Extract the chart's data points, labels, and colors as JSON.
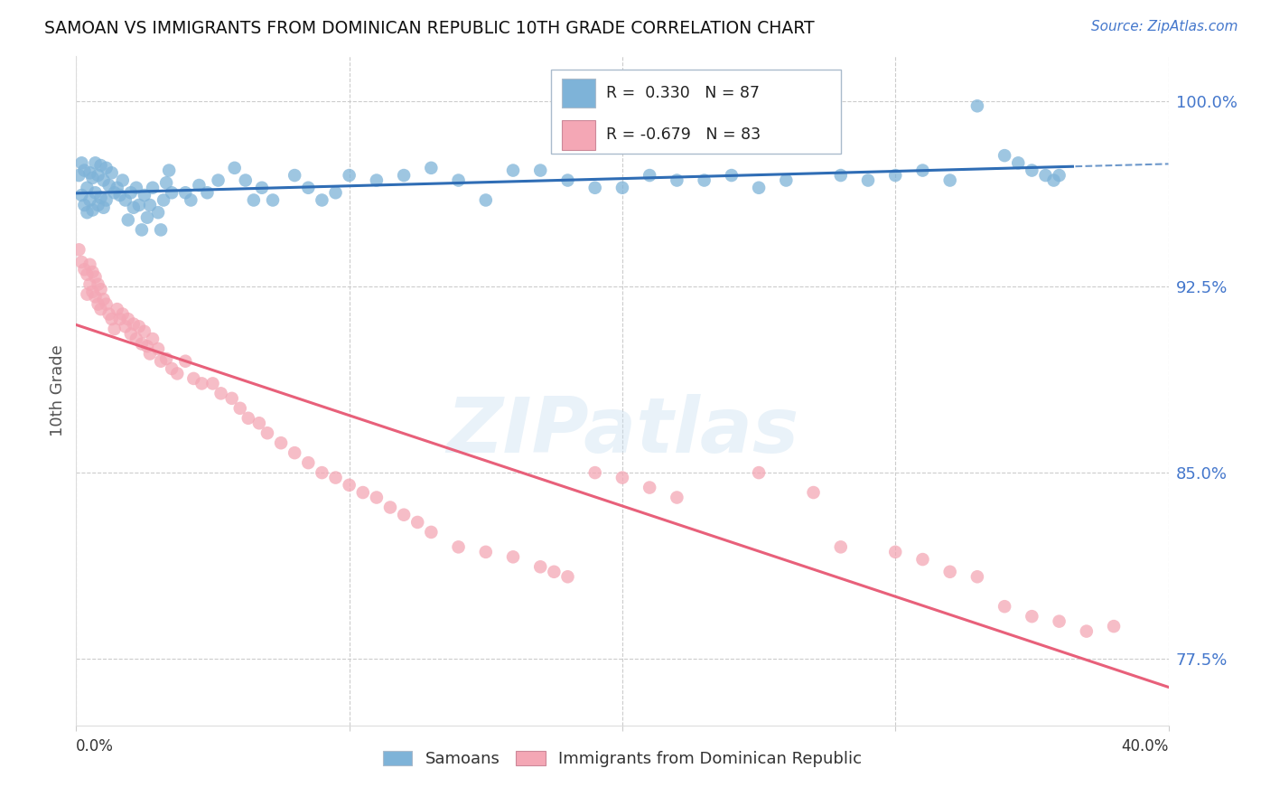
{
  "title": "SAMOAN VS IMMIGRANTS FROM DOMINICAN REPUBLIC 10TH GRADE CORRELATION CHART",
  "source": "Source: ZipAtlas.com",
  "ylabel": "10th Grade",
  "yticks": [
    0.775,
    0.85,
    0.925,
    1.0
  ],
  "ytick_labels": [
    "77.5%",
    "85.0%",
    "92.5%",
    "100.0%"
  ],
  "xticks": [
    0.0,
    0.1,
    0.2,
    0.3,
    0.4
  ],
  "xmin": 0.0,
  "xmax": 0.4,
  "ymin": 0.748,
  "ymax": 1.018,
  "blue_color": "#7EB3D8",
  "pink_color": "#F4A7B5",
  "blue_line_color": "#2F6DB5",
  "pink_line_color": "#E8607A",
  "legend_blue_text": "R =  0.330   N = 87",
  "legend_pink_text": "R = -0.679   N = 83",
  "bottom_legend_blue": "Samoans",
  "bottom_legend_pink": "Immigrants from Dominican Republic",
  "watermark": "ZIPatlas",
  "blue_x": [
    0.001,
    0.002,
    0.002,
    0.003,
    0.003,
    0.004,
    0.004,
    0.005,
    0.005,
    0.006,
    0.006,
    0.007,
    0.007,
    0.008,
    0.008,
    0.009,
    0.009,
    0.01,
    0.01,
    0.011,
    0.011,
    0.012,
    0.013,
    0.014,
    0.015,
    0.016,
    0.017,
    0.018,
    0.019,
    0.02,
    0.021,
    0.022,
    0.023,
    0.024,
    0.025,
    0.026,
    0.027,
    0.028,
    0.03,
    0.031,
    0.032,
    0.033,
    0.034,
    0.035,
    0.04,
    0.042,
    0.045,
    0.048,
    0.052,
    0.058,
    0.062,
    0.065,
    0.068,
    0.072,
    0.08,
    0.085,
    0.09,
    0.095,
    0.1,
    0.11,
    0.12,
    0.13,
    0.14,
    0.15,
    0.16,
    0.17,
    0.18,
    0.19,
    0.2,
    0.21,
    0.22,
    0.23,
    0.24,
    0.25,
    0.26,
    0.28,
    0.29,
    0.3,
    0.31,
    0.32,
    0.33,
    0.34,
    0.345,
    0.35,
    0.355,
    0.358,
    0.36
  ],
  "blue_y": [
    0.97,
    0.975,
    0.962,
    0.972,
    0.958,
    0.965,
    0.955,
    0.971,
    0.96,
    0.969,
    0.956,
    0.975,
    0.963,
    0.97,
    0.958,
    0.974,
    0.961,
    0.968,
    0.957,
    0.973,
    0.96,
    0.966,
    0.971,
    0.963,
    0.965,
    0.962,
    0.968,
    0.96,
    0.952,
    0.963,
    0.957,
    0.965,
    0.958,
    0.948,
    0.962,
    0.953,
    0.958,
    0.965,
    0.955,
    0.948,
    0.96,
    0.967,
    0.972,
    0.963,
    0.963,
    0.96,
    0.966,
    0.963,
    0.968,
    0.973,
    0.968,
    0.96,
    0.965,
    0.96,
    0.97,
    0.965,
    0.96,
    0.963,
    0.97,
    0.968,
    0.97,
    0.973,
    0.968,
    0.96,
    0.972,
    0.972,
    0.968,
    0.965,
    0.965,
    0.97,
    0.968,
    0.968,
    0.97,
    0.965,
    0.968,
    0.97,
    0.968,
    0.97,
    0.972,
    0.968,
    0.998,
    0.978,
    0.975,
    0.972,
    0.97,
    0.968,
    0.97
  ],
  "pink_x": [
    0.001,
    0.002,
    0.003,
    0.004,
    0.004,
    0.005,
    0.005,
    0.006,
    0.006,
    0.007,
    0.007,
    0.008,
    0.008,
    0.009,
    0.009,
    0.01,
    0.011,
    0.012,
    0.013,
    0.014,
    0.015,
    0.016,
    0.017,
    0.018,
    0.019,
    0.02,
    0.021,
    0.022,
    0.023,
    0.024,
    0.025,
    0.026,
    0.027,
    0.028,
    0.03,
    0.031,
    0.033,
    0.035,
    0.037,
    0.04,
    0.043,
    0.046,
    0.05,
    0.053,
    0.057,
    0.06,
    0.063,
    0.067,
    0.07,
    0.075,
    0.08,
    0.085,
    0.09,
    0.095,
    0.1,
    0.105,
    0.11,
    0.115,
    0.12,
    0.125,
    0.13,
    0.14,
    0.15,
    0.16,
    0.17,
    0.175,
    0.18,
    0.19,
    0.2,
    0.21,
    0.22,
    0.25,
    0.27,
    0.28,
    0.3,
    0.31,
    0.32,
    0.33,
    0.34,
    0.35,
    0.36,
    0.37,
    0.38
  ],
  "pink_y": [
    0.94,
    0.935,
    0.932,
    0.93,
    0.922,
    0.934,
    0.926,
    0.931,
    0.923,
    0.929,
    0.921,
    0.926,
    0.918,
    0.924,
    0.916,
    0.92,
    0.918,
    0.914,
    0.912,
    0.908,
    0.916,
    0.912,
    0.914,
    0.909,
    0.912,
    0.906,
    0.91,
    0.904,
    0.909,
    0.902,
    0.907,
    0.901,
    0.898,
    0.904,
    0.9,
    0.895,
    0.896,
    0.892,
    0.89,
    0.895,
    0.888,
    0.886,
    0.886,
    0.882,
    0.88,
    0.876,
    0.872,
    0.87,
    0.866,
    0.862,
    0.858,
    0.854,
    0.85,
    0.848,
    0.845,
    0.842,
    0.84,
    0.836,
    0.833,
    0.83,
    0.826,
    0.82,
    0.818,
    0.816,
    0.812,
    0.81,
    0.808,
    0.85,
    0.848,
    0.844,
    0.84,
    0.85,
    0.842,
    0.82,
    0.818,
    0.815,
    0.81,
    0.808,
    0.796,
    0.792,
    0.79,
    0.786,
    0.788
  ]
}
